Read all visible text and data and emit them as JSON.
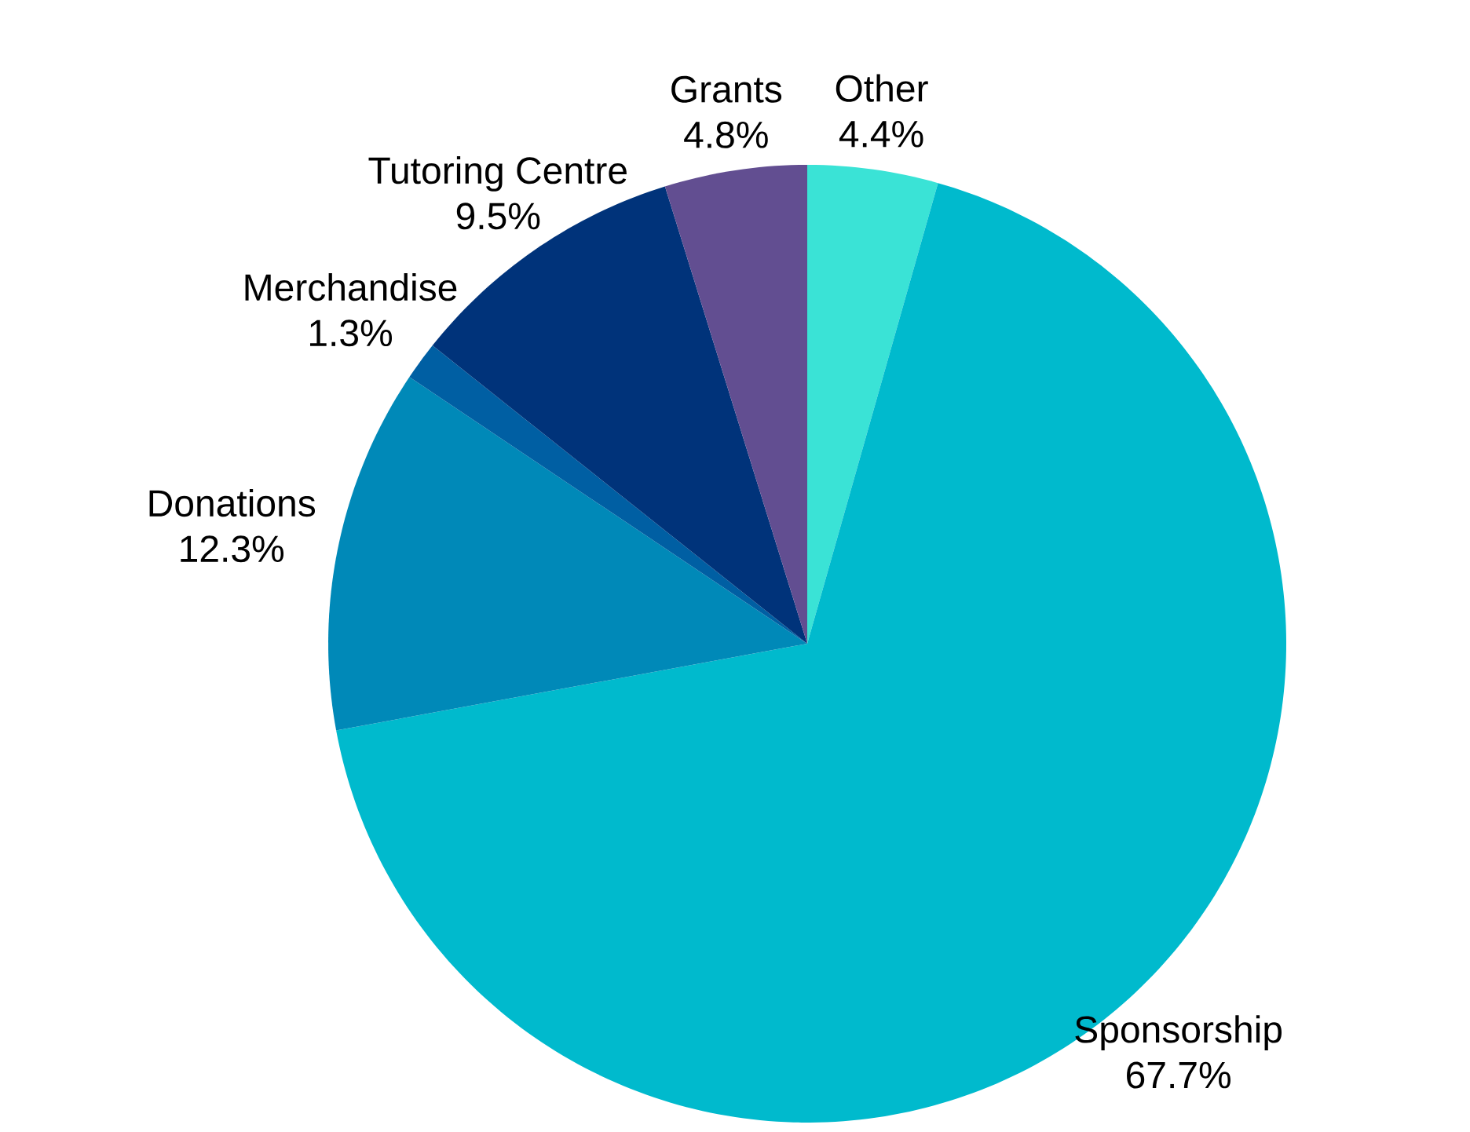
{
  "chart_data": {
    "type": "pie",
    "categories": [
      "Other",
      "Sponsorship",
      "Donations",
      "Merchandise",
      "Tutoring Centre",
      "Grants"
    ],
    "values": [
      4.4,
      67.7,
      12.3,
      1.3,
      9.5,
      4.8
    ],
    "colors": [
      "#3ae3d6",
      "#00bacd",
      "#0089b8",
      "#005fa3",
      "#00337a",
      "#624e91"
    ],
    "value_labels": [
      "4.4%",
      "67.7%",
      "12.3%",
      "1.3%",
      "9.5%",
      "4.8%"
    ]
  }
}
